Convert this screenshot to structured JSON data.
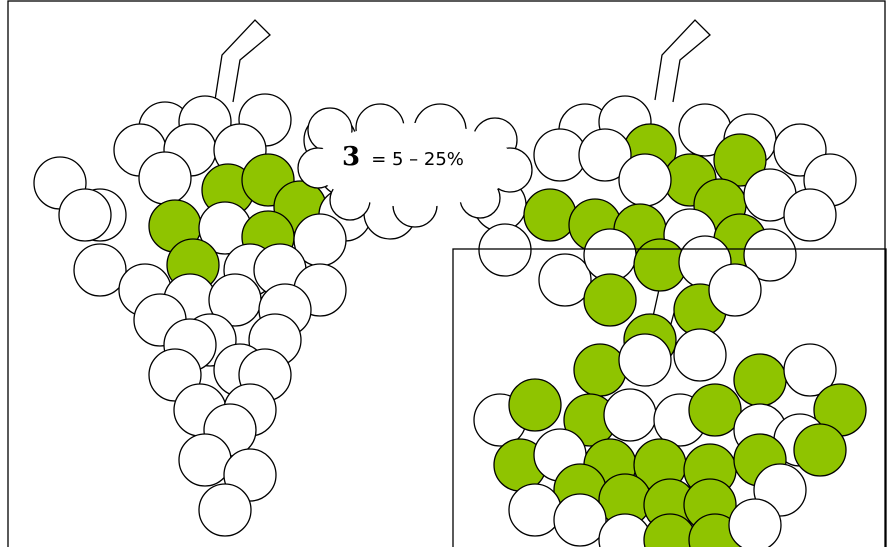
{
  "label": {
    "score": "3",
    "range": "= 5 – 25%"
  }
}
